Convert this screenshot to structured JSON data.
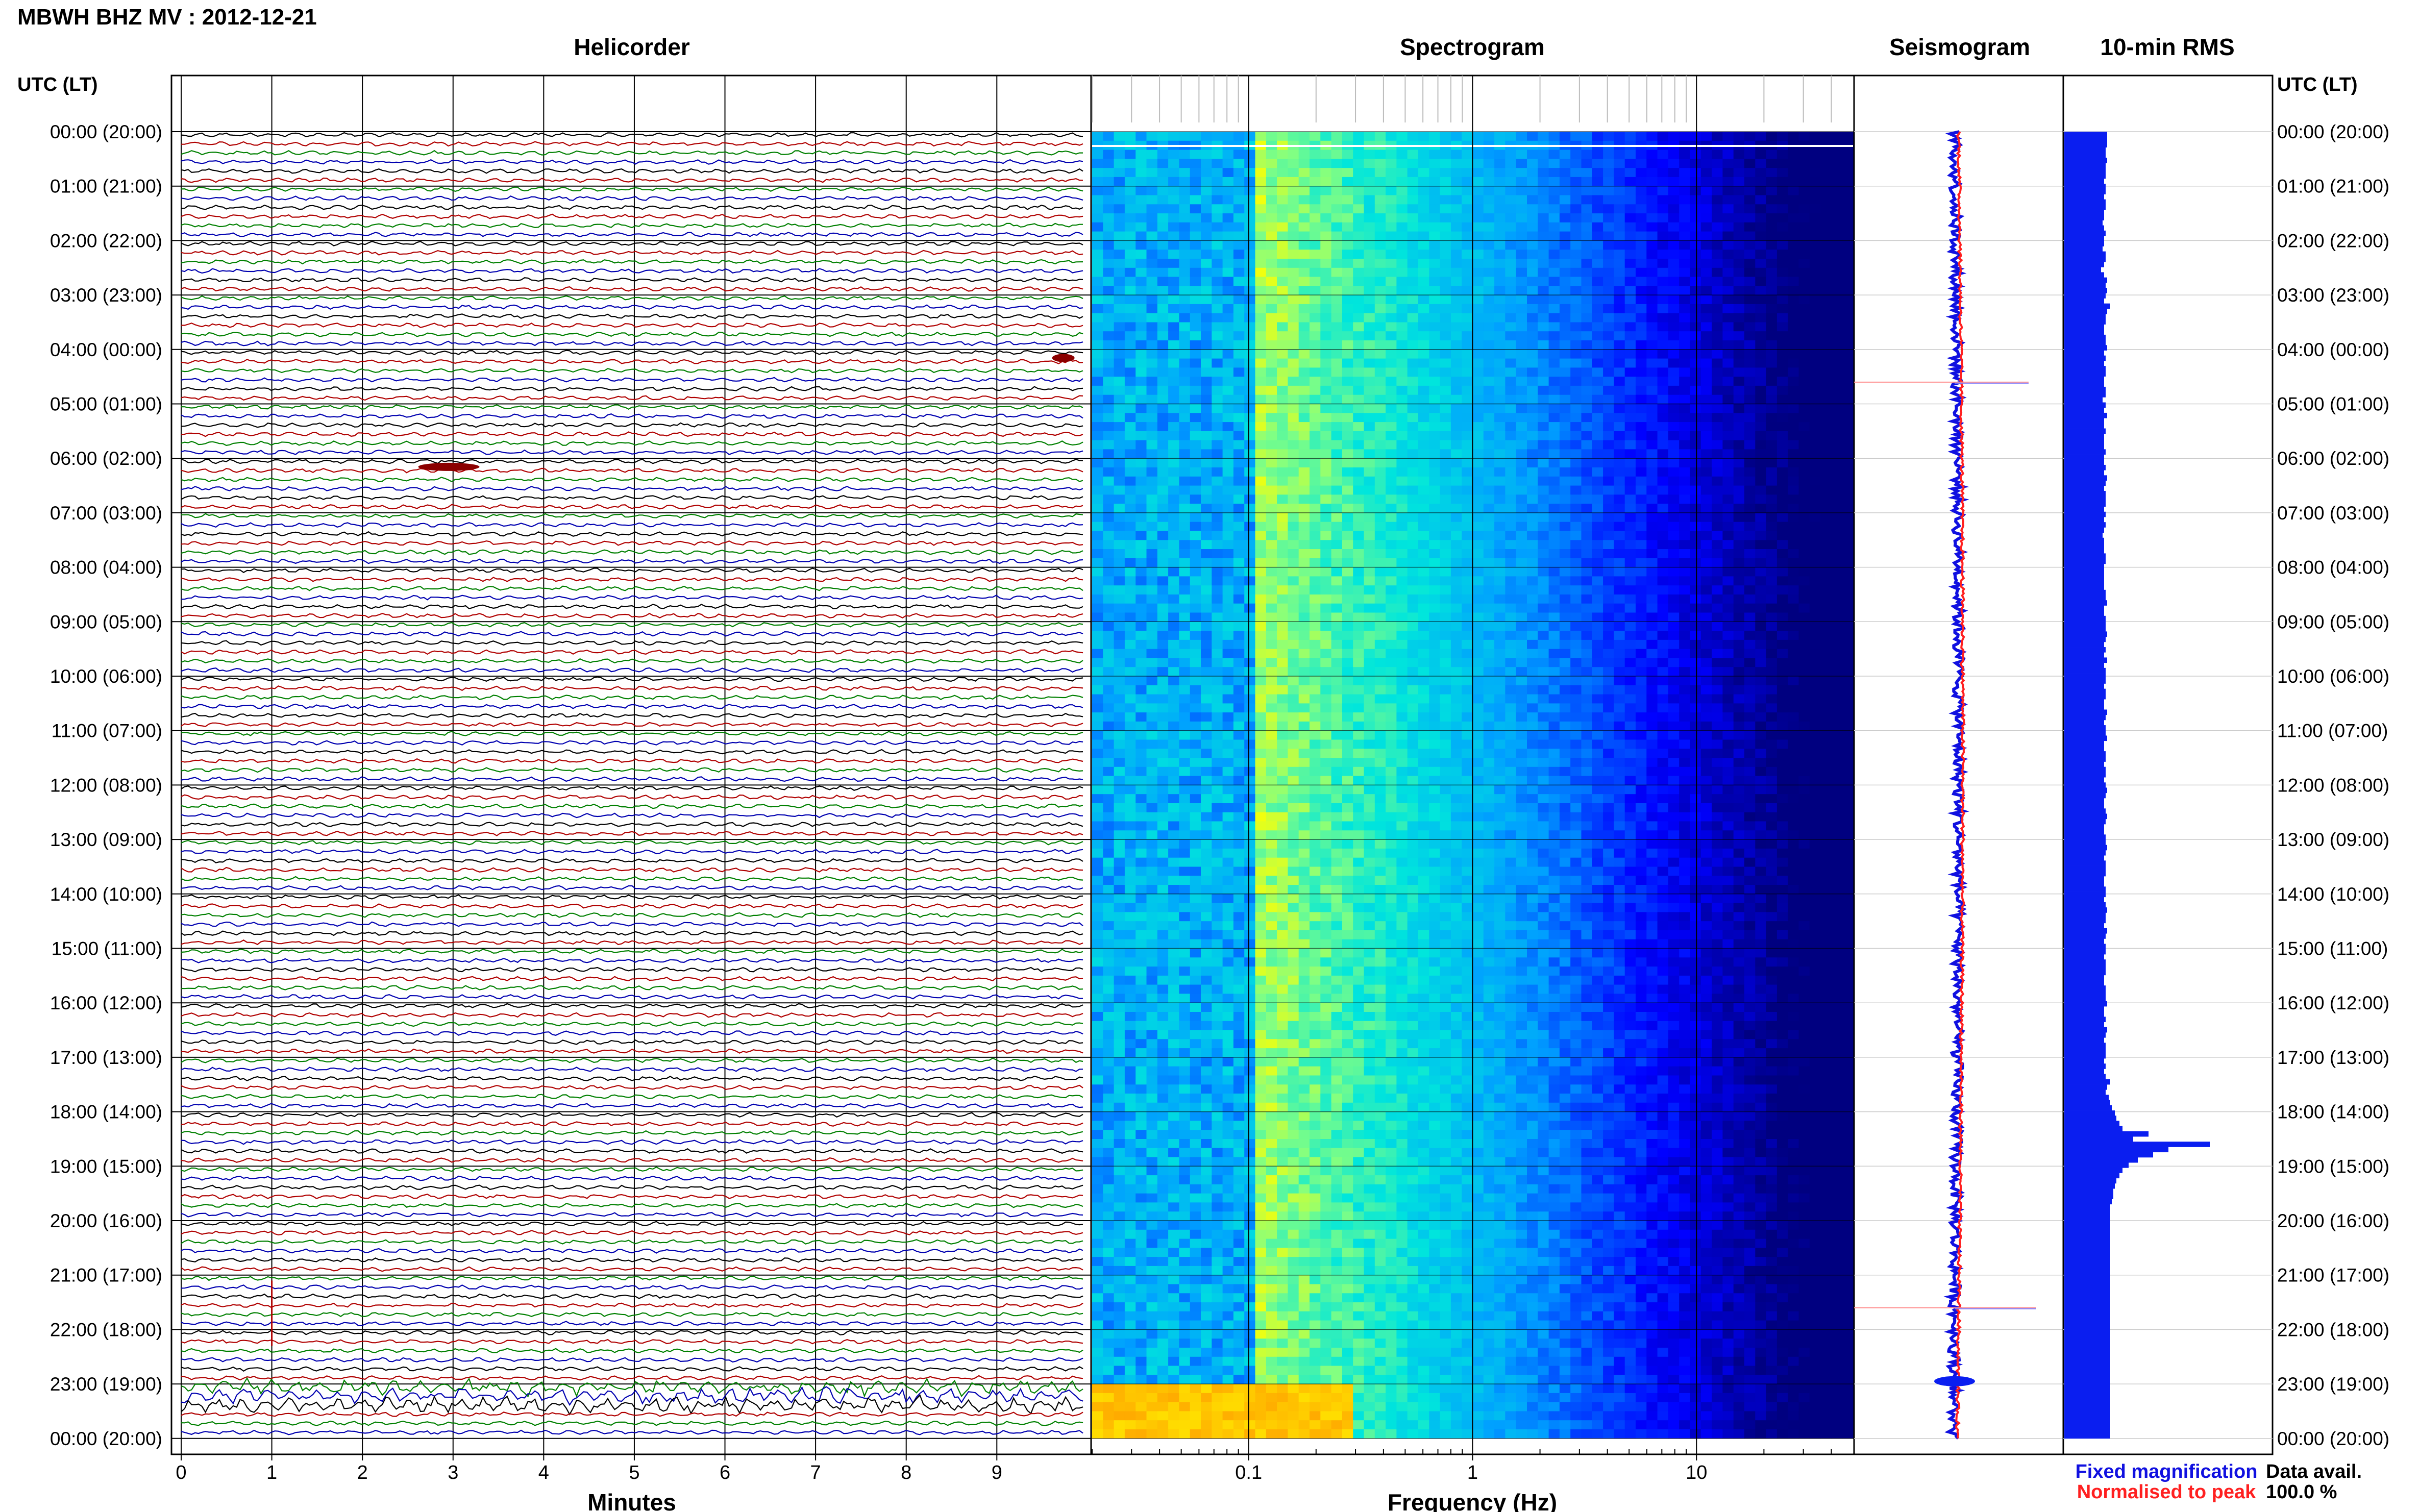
{
  "header": {
    "station_title": "MBWH BHZ MV : 2012-12-21",
    "utc_lt_label": "UTC (LT)"
  },
  "panels": {
    "helicorder": "Helicorder",
    "spectrogram": "Spectrogram",
    "seismogram": "Seismogram",
    "rms": "10-min RMS"
  },
  "axes": {
    "helicorder_xlabel": "Minutes",
    "spectrogram_xlabel": "Frequency (Hz)"
  },
  "legend": {
    "fixed": "Fixed magnification",
    "normalised": "Normalised to peak",
    "fixed_color": "#1010e0",
    "normalised_color": "#ff2020"
  },
  "data_avail": {
    "label": "Data avail.",
    "value": "100.0 %"
  },
  "colors": {
    "helicorder_traces": [
      "#000000",
      "#b00000",
      "#008000",
      "#0000b0"
    ],
    "event_color": "#8b0000",
    "rms_bar": "#0a1ef0",
    "spectrogram_low": "#000080",
    "spectrogram_high": "#ffff00"
  },
  "chart_data": [
    {
      "type": "line",
      "name": "helicorder",
      "title": "Helicorder",
      "xlabel": "Minutes",
      "x_ticks": [
        "0",
        "1",
        "2",
        "3",
        "4",
        "5",
        "6",
        "7",
        "8",
        "9"
      ],
      "xlim": [
        0,
        10
      ],
      "rows_per_hour": 6,
      "hours": 24,
      "hour_labels": [
        "00:00 (20:00)",
        "01:00 (21:00)",
        "02:00 (22:00)",
        "03:00 (23:00)",
        "04:00 (00:00)",
        "05:00 (01:00)",
        "06:00 (02:00)",
        "07:00 (03:00)",
        "08:00 (04:00)",
        "09:00 (05:00)",
        "10:00 (06:00)",
        "11:00 (07:00)",
        "12:00 (08:00)",
        "13:00 (09:00)",
        "14:00 (10:00)",
        "15:00 (11:00)",
        "16:00 (12:00)",
        "17:00 (13:00)",
        "18:00 (14:00)",
        "19:00 (15:00)",
        "20:00 (16:00)",
        "21:00 (17:00)",
        "22:00 (18:00)",
        "23:00 (19:00)",
        "00:00 (20:00)"
      ],
      "events": [
        {
          "hour": 4.1,
          "minute": 9.7
        },
        {
          "hour": 6.1,
          "minute": 2.7
        }
      ]
    },
    {
      "type": "heatmap",
      "name": "spectrogram",
      "title": "Spectrogram",
      "xlabel": "Frequency (Hz)",
      "x_scale": "log",
      "x_ticks": [
        "0.1",
        "1",
        "10"
      ],
      "xlim": [
        0.02,
        50
      ]
    },
    {
      "type": "line",
      "name": "seismogram",
      "title": "Seismogram",
      "series": [
        {
          "name": "Fixed magnification"
        },
        {
          "name": "Normalised to peak"
        }
      ]
    },
    {
      "type": "bar",
      "name": "rms",
      "title": "10-min RMS",
      "relative_values": [
        0.28,
        0.28,
        0.28,
        0.27,
        0.27,
        0.28,
        0.27,
        0.27,
        0.27,
        0.26,
        0.27,
        0.27,
        0.26,
        0.27,
        0.27,
        0.26,
        0.26,
        0.25,
        0.26,
        0.27,
        0.26,
        0.26,
        0.25,
        0.27,
        0.27,
        0.26,
        0.24,
        0.26,
        0.28,
        0.27,
        0.28,
        0.27,
        0.26,
        0.3,
        0.28,
        0.27,
        0.27,
        0.26,
        0.26,
        0.27,
        0.27,
        0.28,
        0.26,
        0.27,
        0.26,
        0.27,
        0.27,
        0.26,
        0.26,
        0.27,
        0.27,
        0.25,
        0.27,
        0.26,
        0.28,
        0.26,
        0.26,
        0.27,
        0.26,
        0.26,
        0.26,
        0.27,
        0.26,
        0.26,
        0.27,
        0.26,
        0.28,
        0.27,
        0.26,
        0.27,
        0.27,
        0.27,
        0.26,
        0.27,
        0.26,
        0.27,
        0.26,
        0.25,
        0.26,
        0.26,
        0.26,
        0.27,
        0.27,
        0.26,
        0.26,
        0.26,
        0.26,
        0.26,
        0.27,
        0.27,
        0.28,
        0.26,
        0.26,
        0.27,
        0.27,
        0.27,
        0.28,
        0.27,
        0.26,
        0.27,
        0.26,
        0.28,
        0.26,
        0.27,
        0.27,
        0.27,
        0.26,
        0.27,
        0.27,
        0.26,
        0.26,
        0.28,
        0.27,
        0.26,
        0.27,
        0.27,
        0.28,
        0.26,
        0.26,
        0.27,
        0.27,
        0.26,
        0.27,
        0.27,
        0.26,
        0.27,
        0.28,
        0.27,
        0.26,
        0.26,
        0.27,
        0.28,
        0.27,
        0.26,
        0.26,
        0.27,
        0.27,
        0.28,
        0.27,
        0.26,
        0.27,
        0.27,
        0.27,
        0.26,
        0.26,
        0.27,
        0.27,
        0.26,
        0.27,
        0.28,
        0.27,
        0.27,
        0.26,
        0.28,
        0.27,
        0.26,
        0.27,
        0.27,
        0.26,
        0.27,
        0.27,
        0.27,
        0.26,
        0.26,
        0.27,
        0.27,
        0.27,
        0.28,
        0.26,
        0.26,
        0.27,
        0.26,
        0.28,
        0.27,
        0.26,
        0.27,
        0.27,
        0.27,
        0.26,
        0.27,
        0.26,
        0.27,
        0.3,
        0.28,
        0.27,
        0.29,
        0.3,
        0.31,
        0.33,
        0.34,
        0.36,
        0.38,
        0.55,
        0.45,
        0.95,
        0.68,
        0.58,
        0.48,
        0.42,
        0.38,
        0.36,
        0.34,
        0.33,
        0.32,
        0.32,
        0.31,
        0.3,
        0.3,
        0.3,
        0.3,
        0.3,
        0.3,
        0.3,
        0.3,
        0.3,
        0.3,
        0.3,
        0.3,
        0.3,
        0.3,
        0.3,
        0.3,
        0.3,
        0.3,
        0.3,
        0.3,
        0.3,
        0.3,
        0.3,
        0.3,
        0.3,
        0.3,
        0.3,
        0.3,
        0.3,
        0.3,
        0.3,
        0.3,
        0.3,
        0.3,
        0.3,
        0.3,
        0.3,
        0.3,
        0.3,
        0.3,
        0.3,
        0.3,
        0.3,
        0.3,
        0.3
      ]
    }
  ]
}
